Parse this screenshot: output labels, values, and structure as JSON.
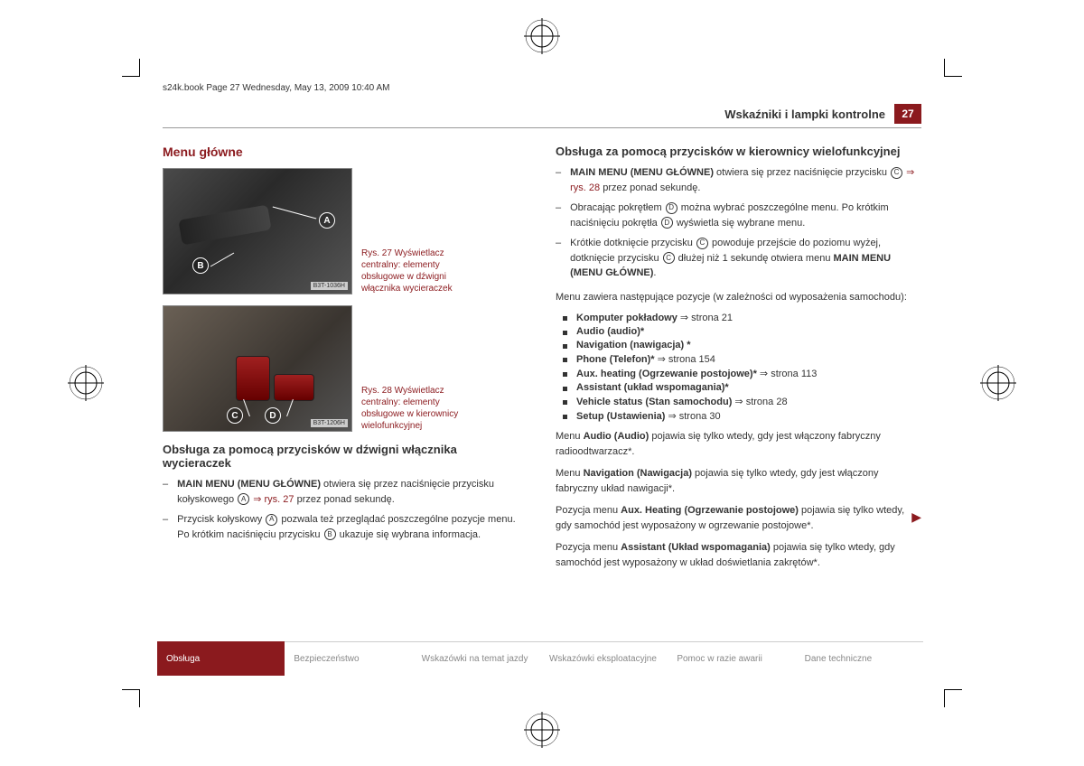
{
  "meta": {
    "bookline": "s24k.book  Page 27  Wednesday, May 13, 2009  10:40 AM"
  },
  "header": {
    "title": "Wskaźniki i lampki kontrolne",
    "page": "27"
  },
  "left": {
    "section_title": "Menu główne",
    "fig1": {
      "watermark": "B3T-1036H",
      "caption": "Rys. 27  Wyświetlacz centralny: elementy obsługowe w dźwigni włącznika wycieraczek",
      "A": "A",
      "B": "B"
    },
    "fig2": {
      "watermark": "B3T-1206H",
      "caption": "Rys. 28  Wyświetlacz centralny: elementy obsługowe w kierownicy wielofunkcyjnej",
      "C": "C",
      "D": "D"
    },
    "sub1": "Obsługa za pomocą przycisków w dźwigni włącznika wycieraczek",
    "item1_pre": "MAIN MENU (MENU GŁÓWNE)",
    "item1_text": " otwiera się przez naciśnięcie przycisku kołyskowego ",
    "item1_a": "A",
    "item1_ref": " ⇒ rys. 27",
    "item1_tail": " przez ponad sekundę.",
    "item2_pre": "Przycisk kołyskowy ",
    "item2_a": "A",
    "item2_mid": " pozwala też przeglądać poszczególne pozycje menu. Po krótkim naciśnięciu przycisku ",
    "item2_b": "B",
    "item2_tail": " ukazuje się wybrana informacja."
  },
  "right": {
    "sub1": "Obsługa za pomocą przycisków w kierownicy wielofunkcyjnej",
    "r1_bold": "MAIN MENU (MENU GŁÓWNE)",
    "r1_text": " otwiera się przez naciśnięcie przycisku ",
    "r1_c": "C",
    "r1_ref": " ⇒ rys. 28",
    "r1_tail": " przez ponad sekundę.",
    "r2_pre": "Obracając pokrętłem ",
    "r2_d": "D",
    "r2_mid": " można wybrać poszczególne menu. Po krótkim naciśnięciu pokrętła ",
    "r2_d2": "D",
    "r2_tail": " wyświetla się wybrane menu.",
    "r3_pre": "Krótkie dotknięcie przycisku ",
    "r3_c1": "C",
    "r3_mid": " powoduje przejście do poziomu wyżej, dotknięcie przycisku ",
    "r3_c2": "C",
    "r3_mid2": " dłużej niż 1 sekundę otwiera menu ",
    "r3_bold": "MAIN MENU (MENU GŁÓWNE)",
    "r3_tail": ".",
    "menu_intro": "Menu zawiera następujące pozycje (w zależności od wyposażenia samochodu):",
    "bullets": [
      {
        "b": "Komputer pokładowy",
        "t": " ⇒ strona 21"
      },
      {
        "b": "Audio (audio)*",
        "t": ""
      },
      {
        "b": "Navigation (nawigacja) *",
        "t": ""
      },
      {
        "b": "Phone (Telefon)*",
        "t": " ⇒ strona 154"
      },
      {
        "b": "Aux. heating (Ogrzewanie postojowe)*",
        "t": " ⇒ strona 113"
      },
      {
        "b": "Assistant (układ wspomagania)*",
        "t": ""
      },
      {
        "b": "Vehicle status (Stan samochodu)",
        "t": " ⇒ strona 28"
      },
      {
        "b": "Setup (Ustawienia)",
        "t": " ⇒ strona 30"
      }
    ],
    "p1_pre": "Menu ",
    "p1_b": "Audio (Audio)",
    "p1_t": " pojawia się tylko wtedy, gdy jest włączony fabryczny radioodtwarzacz*.",
    "p2_pre": "Menu ",
    "p2_b": "Navigation (Nawigacja)",
    "p2_t": " pojawia się tylko wtedy, gdy jest włączony fabryczny układ nawigacji*.",
    "p3_pre": "Pozycja menu ",
    "p3_b": "Aux. Heating (Ogrzewanie postojowe)",
    "p3_t": " pojawia się tylko wtedy, gdy samochód jest wyposażony w ogrzewanie postojowe*.",
    "p4_pre": "Pozycja menu ",
    "p4_b": "Assistant (Układ wspomagania)",
    "p4_t": " pojawia się tylko wtedy, gdy samochód jest wyposażony w układ doświetlania zakrętów*."
  },
  "tabs": [
    "Obsługa",
    "Bezpieczeństwo",
    "Wskazówki na temat jazdy",
    "Wskazówki eksploatacyjne",
    "Pomoc w razie awarii",
    "Dane techniczne"
  ]
}
